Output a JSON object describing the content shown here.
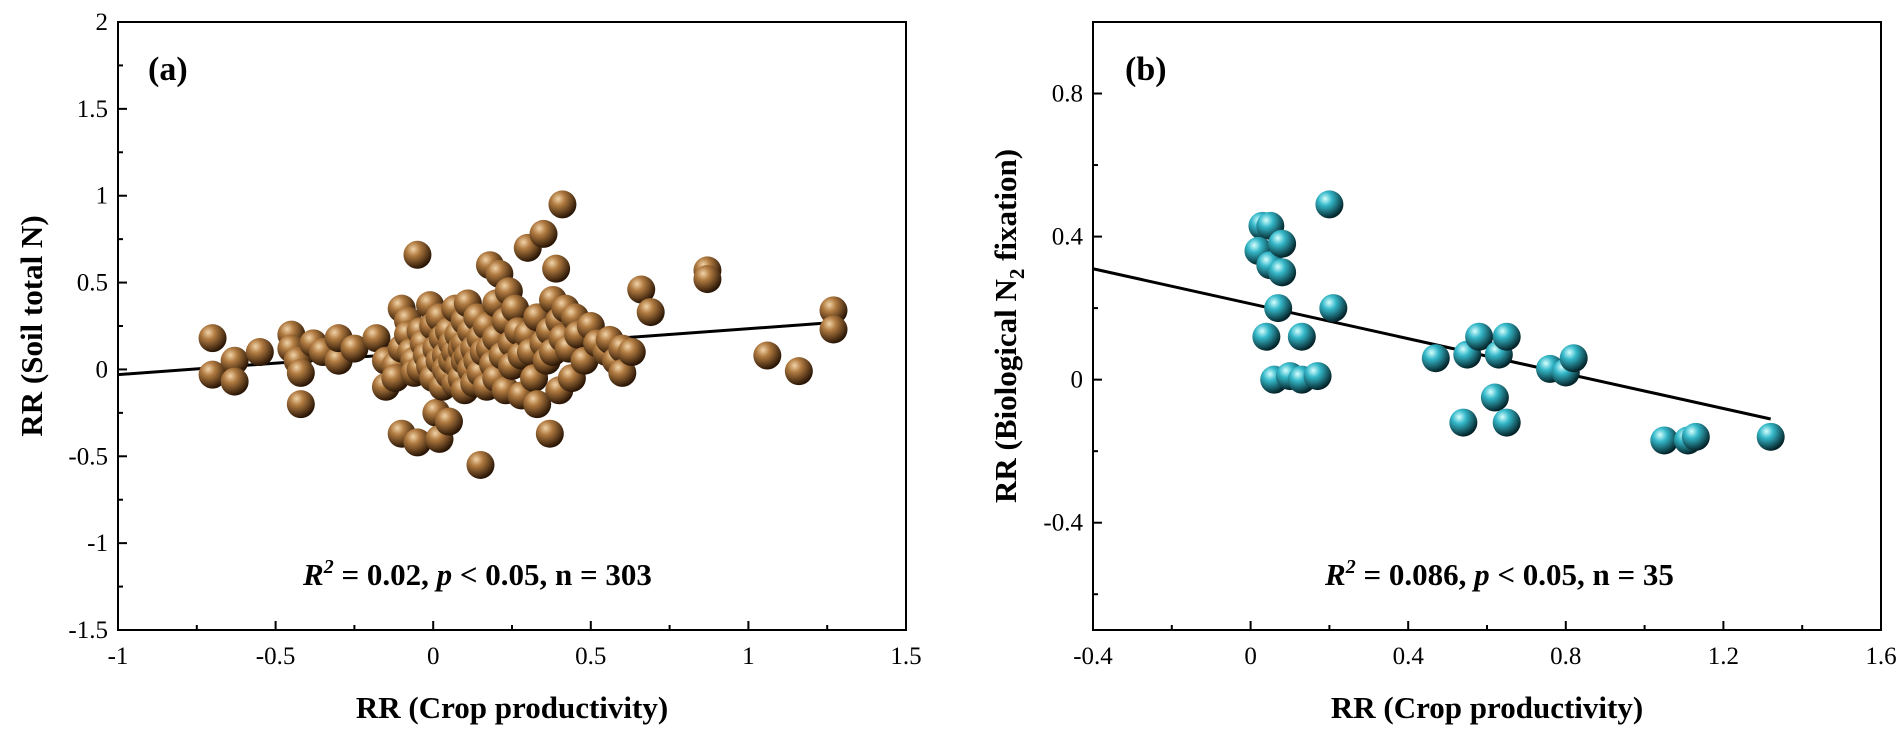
{
  "colors": {
    "panel_a_point": "#8b5a2b",
    "panel_b_point": "#27a8ba",
    "panel_label": "#b22222",
    "axis": "#000000",
    "fit_line": "#000000"
  },
  "chart_data": [
    {
      "type": "scatter",
      "panel_label": "(a)",
      "xlabel": "RR (Crop productivity)",
      "ylabel": "RR (Soil total N)",
      "xlim": [
        -1,
        1.5
      ],
      "ylim": [
        -1.5,
        2
      ],
      "xticks": [
        -1,
        -0.5,
        0,
        0.5,
        1,
        1.5
      ],
      "xtick_labels": [
        "-1",
        "-0.5",
        "0",
        "0.5",
        "1",
        "1.5"
      ],
      "yticks": [
        -1.5,
        -1,
        -0.5,
        0,
        0.5,
        1,
        1.5,
        2
      ],
      "ytick_labels": [
        "-1.5",
        "-1",
        "-0.5",
        "0",
        "0.5",
        "1",
        "1.5",
        "2"
      ],
      "stats": {
        "r2_label": "R",
        "r2_sup": "2",
        "r2_rest": " = 0.02, ",
        "p_label": "p",
        "rest": " < 0.05, n = 303"
      },
      "fit_line": {
        "x": [
          -1,
          1.27
        ],
        "y": [
          -0.03,
          0.27
        ]
      },
      "points": [
        [
          -0.7,
          0.18
        ],
        [
          -0.7,
          -0.03
        ],
        [
          -0.63,
          0.05
        ],
        [
          -0.63,
          -0.07
        ],
        [
          -0.55,
          0.1
        ],
        [
          -0.45,
          0.2
        ],
        [
          -0.45,
          0.12
        ],
        [
          -0.43,
          0.05
        ],
        [
          -0.42,
          -0.02
        ],
        [
          -0.42,
          -0.2
        ],
        [
          -0.38,
          0.15
        ],
        [
          -0.35,
          0.1
        ],
        [
          -0.3,
          0.05
        ],
        [
          -0.3,
          0.18
        ],
        [
          -0.25,
          0.12
        ],
        [
          -0.18,
          0.18
        ],
        [
          -0.15,
          0.05
        ],
        [
          -0.15,
          -0.1
        ],
        [
          -0.12,
          0.02
        ],
        [
          -0.12,
          -0.05
        ],
        [
          -0.1,
          0.35
        ],
        [
          -0.1,
          0.12
        ],
        [
          -0.1,
          -0.37
        ],
        [
          -0.08,
          0.28
        ],
        [
          -0.08,
          0.2
        ],
        [
          -0.07,
          0.1
        ],
        [
          -0.06,
          0.05
        ],
        [
          -0.06,
          -0.02
        ],
        [
          -0.05,
          0.66
        ],
        [
          -0.05,
          -0.42
        ],
        [
          -0.04,
          0.22
        ],
        [
          -0.04,
          0.0
        ],
        [
          -0.03,
          0.15
        ],
        [
          -0.02,
          0.08
        ],
        [
          -0.01,
          0.37
        ],
        [
          -0.01,
          0.02
        ],
        [
          0.0,
          0.25
        ],
        [
          0.0,
          -0.05
        ],
        [
          0.01,
          0.12
        ],
        [
          0.01,
          -0.25
        ],
        [
          0.02,
          0.3
        ],
        [
          0.02,
          0.05
        ],
        [
          0.02,
          -0.4
        ],
        [
          0.03,
          0.18
        ],
        [
          0.03,
          -0.1
        ],
        [
          0.04,
          0.08
        ],
        [
          0.04,
          0.0
        ],
        [
          0.05,
          0.22
        ],
        [
          0.05,
          -0.03
        ],
        [
          0.05,
          -0.3
        ],
        [
          0.06,
          0.15
        ],
        [
          0.06,
          0.05
        ],
        [
          0.07,
          0.35
        ],
        [
          0.07,
          0.1
        ],
        [
          0.07,
          -0.08
        ],
        [
          0.08,
          0.2
        ],
        [
          0.08,
          0.02
        ],
        [
          0.09,
          0.12
        ],
        [
          0.09,
          -0.05
        ],
        [
          0.1,
          0.28
        ],
        [
          0.1,
          0.15
        ],
        [
          0.1,
          0.05
        ],
        [
          0.1,
          -0.12
        ],
        [
          0.11,
          0.38
        ],
        [
          0.11,
          0.08
        ],
        [
          0.12,
          0.22
        ],
        [
          0.12,
          0.0
        ],
        [
          0.13,
          0.12
        ],
        [
          0.13,
          -0.08
        ],
        [
          0.14,
          0.3
        ],
        [
          0.14,
          0.05
        ],
        [
          0.15,
          -0.55
        ],
        [
          0.15,
          0.18
        ],
        [
          0.15,
          -0.02
        ],
        [
          0.16,
          0.1
        ],
        [
          0.17,
          0.25
        ],
        [
          0.17,
          -0.1
        ],
        [
          0.18,
          0.6
        ],
        [
          0.18,
          0.12
        ],
        [
          0.19,
          0.03
        ],
        [
          0.2,
          0.38
        ],
        [
          0.2,
          0.18
        ],
        [
          0.2,
          -0.05
        ],
        [
          0.21,
          0.55
        ],
        [
          0.22,
          0.08
        ],
        [
          0.23,
          0.28
        ],
        [
          0.23,
          -0.12
        ],
        [
          0.24,
          0.45
        ],
        [
          0.25,
          0.15
        ],
        [
          0.25,
          0.02
        ],
        [
          0.26,
          0.35
        ],
        [
          0.27,
          0.22
        ],
        [
          0.28,
          0.08
        ],
        [
          0.28,
          -0.15
        ],
        [
          0.3,
          0.7
        ],
        [
          0.3,
          0.2
        ],
        [
          0.31,
          0.1
        ],
        [
          0.32,
          -0.05
        ],
        [
          0.33,
          0.3
        ],
        [
          0.33,
          -0.2
        ],
        [
          0.35,
          0.78
        ],
        [
          0.35,
          0.15
        ],
        [
          0.36,
          0.05
        ],
        [
          0.37,
          0.22
        ],
        [
          0.37,
          -0.37
        ],
        [
          0.38,
          0.4
        ],
        [
          0.38,
          0.1
        ],
        [
          0.39,
          0.58
        ],
        [
          0.4,
          0.28
        ],
        [
          0.4,
          -0.12
        ],
        [
          0.41,
          0.95
        ],
        [
          0.41,
          0.18
        ],
        [
          0.42,
          0.35
        ],
        [
          0.43,
          0.12
        ],
        [
          0.44,
          -0.05
        ],
        [
          0.45,
          0.3
        ],
        [
          0.46,
          0.2
        ],
        [
          0.48,
          0.05
        ],
        [
          0.5,
          0.25
        ],
        [
          0.52,
          0.15
        ],
        [
          0.55,
          0.1
        ],
        [
          0.56,
          0.17
        ],
        [
          0.58,
          0.05
        ],
        [
          0.6,
          0.12
        ],
        [
          0.6,
          -0.02
        ],
        [
          0.63,
          0.1
        ],
        [
          0.66,
          0.46
        ],
        [
          0.69,
          0.33
        ],
        [
          0.87,
          0.57
        ],
        [
          0.87,
          0.52
        ],
        [
          1.06,
          0.08
        ],
        [
          1.16,
          -0.01
        ],
        [
          1.27,
          0.34
        ],
        [
          1.27,
          0.23
        ]
      ]
    },
    {
      "type": "scatter",
      "panel_label": "(b)",
      "xlabel": "RR (Crop productivity)",
      "ylabel_main": "RR (Biological N",
      "ylabel_sub": "2",
      "ylabel_end": " fixation)",
      "xlim": [
        -0.4,
        1.6
      ],
      "ylim": [
        -0.7,
        1.0
      ],
      "xticks": [
        -0.4,
        0,
        0.4,
        0.8,
        1.2,
        1.6
      ],
      "xtick_labels": [
        "-0.4",
        "0",
        "0.4",
        "0.8",
        "1.2",
        "1.6"
      ],
      "yticks": [
        -0.4,
        0,
        0.4,
        0.8
      ],
      "ytick_labels": [
        "-0.4",
        "0",
        "0.4",
        "0.8"
      ],
      "stats": {
        "r2_label": "R",
        "r2_sup": "2",
        "r2_rest": " = 0.086, ",
        "p_label": "p",
        "rest": " < 0.05, n = 35"
      },
      "fit_line": {
        "x": [
          -0.4,
          1.32
        ],
        "y": [
          0.31,
          -0.11
        ]
      },
      "points": [
        [
          0.03,
          0.43
        ],
        [
          0.05,
          0.43
        ],
        [
          0.02,
          0.36
        ],
        [
          0.05,
          0.32
        ],
        [
          0.08,
          0.38
        ],
        [
          0.08,
          0.3
        ],
        [
          0.2,
          0.49
        ],
        [
          0.07,
          0.2
        ],
        [
          0.21,
          0.2
        ],
        [
          0.04,
          0.12
        ],
        [
          0.06,
          0.0
        ],
        [
          0.1,
          0.01
        ],
        [
          0.13,
          0.12
        ],
        [
          0.13,
          0.0
        ],
        [
          0.17,
          0.01
        ],
        [
          0.47,
          0.06
        ],
        [
          0.55,
          0.07
        ],
        [
          0.58,
          0.12
        ],
        [
          0.63,
          0.07
        ],
        [
          0.65,
          0.12
        ],
        [
          0.62,
          -0.05
        ],
        [
          0.54,
          -0.12
        ],
        [
          0.65,
          -0.12
        ],
        [
          0.76,
          0.03
        ],
        [
          0.8,
          0.02
        ],
        [
          0.82,
          0.06
        ],
        [
          1.05,
          -0.17
        ],
        [
          1.11,
          -0.17
        ],
        [
          1.13,
          -0.16
        ],
        [
          1.32,
          -0.16
        ]
      ]
    }
  ]
}
